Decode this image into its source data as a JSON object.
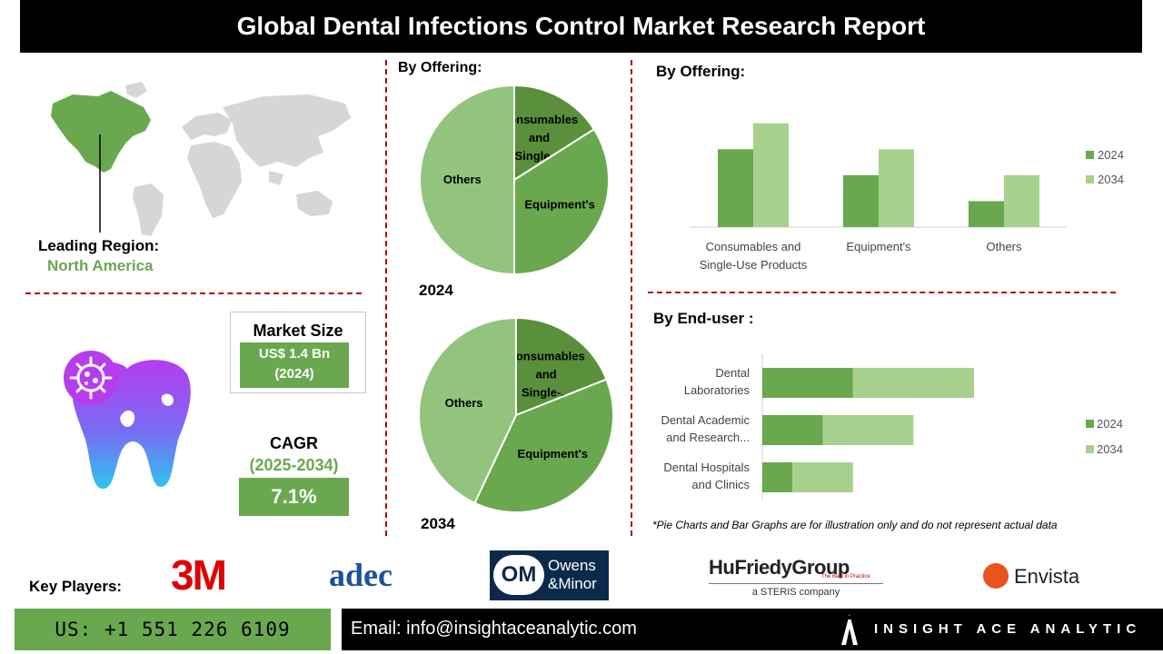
{
  "header": {
    "title": "Global Dental Infections Control Market Research Report"
  },
  "region": {
    "label": "Leading Region:",
    "value": "North America"
  },
  "market_size": {
    "title": "Market Size",
    "value_line1": "US$ 1.4 Bn",
    "value_line2": "(2024)"
  },
  "cagr": {
    "title": "CAGR",
    "period": "(2025-2034)",
    "value": "7.1%"
  },
  "pie_section": {
    "title": "By Offering:"
  },
  "bar_section": {
    "title": "By  Offering:"
  },
  "hbar_section": {
    "title": "By End-user :"
  },
  "disclaimer": "*Pie Charts and Bar Graphs are for illustration only and do not represent actual data",
  "key_players": {
    "label": "Key Players:",
    "logos": {
      "m3": "3M",
      "adec": "adec",
      "om_initials": "OM",
      "om_line1": "Owens",
      "om_line2": "&Minor",
      "hufriedy": "HuFriedyGroup",
      "hufriedy_tag": "The Best in Practice",
      "hufriedy_sub": "a STERIS company",
      "envista": "Envista"
    }
  },
  "footer": {
    "phone": "US: +1 551 226 6109",
    "email": "Email: info@insightaceanalytic.com",
    "brand": "INSIGHT ACE ANALYTIC"
  },
  "colors": {
    "dark_green": "#5a8f3c",
    "mid_green": "#6aa84f",
    "light_green": "#93c47d",
    "pale_green": "#a9d18e",
    "header_bg": "#000000",
    "divider": "#b30000"
  },
  "chart_data": [
    {
      "type": "pie",
      "year_label": "2024",
      "categories": [
        "Consumables and Single-...",
        "Equipment's",
        "Others"
      ],
      "values": [
        16,
        34,
        50
      ]
    },
    {
      "type": "pie",
      "year_label": "2034",
      "categories": [
        "Consumables and Single-...",
        "Equipment's",
        "Others"
      ],
      "values": [
        19,
        38,
        43
      ]
    },
    {
      "type": "bar",
      "categories": [
        "Consumables and Single-Use Products",
        "Equipment's",
        "Others"
      ],
      "category_lines": [
        [
          "Consumables and",
          "Single-Use Products"
        ],
        [
          "Equipment's"
        ],
        [
          "Others"
        ]
      ],
      "series": [
        {
          "name": "2024",
          "values": [
            3,
            2,
            1
          ]
        },
        {
          "name": "2034",
          "values": [
            4,
            3,
            2
          ]
        }
      ],
      "ylim": [
        0,
        4.2
      ],
      "legend": "right"
    },
    {
      "type": "bar",
      "orientation": "horizontal",
      "stacked": true,
      "categories": [
        "Dental Laboratories",
        "Dental Academic and Research...",
        "Dental Hospitals and Clinics"
      ],
      "category_lines": [
        [
          "Dental",
          "Laboratories"
        ],
        [
          "Dental Academic",
          "and Research..."
        ],
        [
          "Dental Hospitals",
          "and Clinics"
        ]
      ],
      "series": [
        {
          "name": "2024",
          "values": [
            3,
            2,
            1
          ]
        },
        {
          "name": "2034",
          "values": [
            4,
            3,
            2
          ]
        }
      ],
      "xlim": [
        0,
        7
      ],
      "legend": "right"
    }
  ]
}
